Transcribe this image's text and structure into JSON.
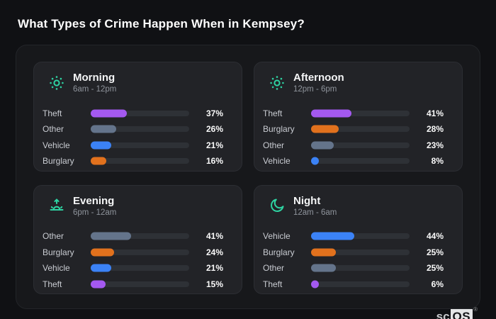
{
  "page": {
    "title": "What Types of Crime Happen When in Kempsey?"
  },
  "logo": {
    "prefix": "sc",
    "suffix": "OS",
    "registered": "®"
  },
  "theme": {
    "page_bg": "#101114",
    "container_bg": "#17181b",
    "card_bg": "#222327",
    "track_color": "#2e3136",
    "accent_teal": "#2ed3a2",
    "theft_color": "#a459f0",
    "burglary_color": "#e1711d",
    "other_color": "#64748b",
    "vehicle_color": "#3b82f6"
  },
  "chart_data": [
    {
      "type": "bar",
      "orientation": "horizontal",
      "title": "Morning",
      "time_range": "6am - 12pm",
      "icon": "sun-icon",
      "unit": "%",
      "xlim": [
        0,
        100
      ],
      "rows": [
        {
          "label": "Theft",
          "value": 37,
          "display": "37%",
          "color": "#a459f0"
        },
        {
          "label": "Other",
          "value": 26,
          "display": "26%",
          "color": "#64748b"
        },
        {
          "label": "Vehicle",
          "value": 21,
          "display": "21%",
          "color": "#3b82f6"
        },
        {
          "label": "Burglary",
          "value": 16,
          "display": "16%",
          "color": "#e1711d"
        }
      ]
    },
    {
      "type": "bar",
      "orientation": "horizontal",
      "title": "Afternoon",
      "time_range": "12pm - 6pm",
      "icon": "sun-icon",
      "unit": "%",
      "xlim": [
        0,
        100
      ],
      "rows": [
        {
          "label": "Theft",
          "value": 41,
          "display": "41%",
          "color": "#a459f0"
        },
        {
          "label": "Burglary",
          "value": 28,
          "display": "28%",
          "color": "#e1711d"
        },
        {
          "label": "Other",
          "value": 23,
          "display": "23%",
          "color": "#64748b"
        },
        {
          "label": "Vehicle",
          "value": 8,
          "display": "8%",
          "color": "#3b82f6"
        }
      ]
    },
    {
      "type": "bar",
      "orientation": "horizontal",
      "title": "Evening",
      "time_range": "6pm - 12am",
      "icon": "sunrise-icon",
      "unit": "%",
      "xlim": [
        0,
        100
      ],
      "rows": [
        {
          "label": "Other",
          "value": 41,
          "display": "41%",
          "color": "#64748b"
        },
        {
          "label": "Burglary",
          "value": 24,
          "display": "24%",
          "color": "#e1711d"
        },
        {
          "label": "Vehicle",
          "value": 21,
          "display": "21%",
          "color": "#3b82f6"
        },
        {
          "label": "Theft",
          "value": 15,
          "display": "15%",
          "color": "#a459f0"
        }
      ]
    },
    {
      "type": "bar",
      "orientation": "horizontal",
      "title": "Night",
      "time_range": "12am - 6am",
      "icon": "moon-icon",
      "unit": "%",
      "xlim": [
        0,
        100
      ],
      "rows": [
        {
          "label": "Vehicle",
          "value": 44,
          "display": "44%",
          "color": "#3b82f6"
        },
        {
          "label": "Burglary",
          "value": 25,
          "display": "25%",
          "color": "#e1711d"
        },
        {
          "label": "Other",
          "value": 25,
          "display": "25%",
          "color": "#64748b"
        },
        {
          "label": "Theft",
          "value": 6,
          "display": "6%",
          "color": "#a459f0"
        }
      ]
    }
  ]
}
